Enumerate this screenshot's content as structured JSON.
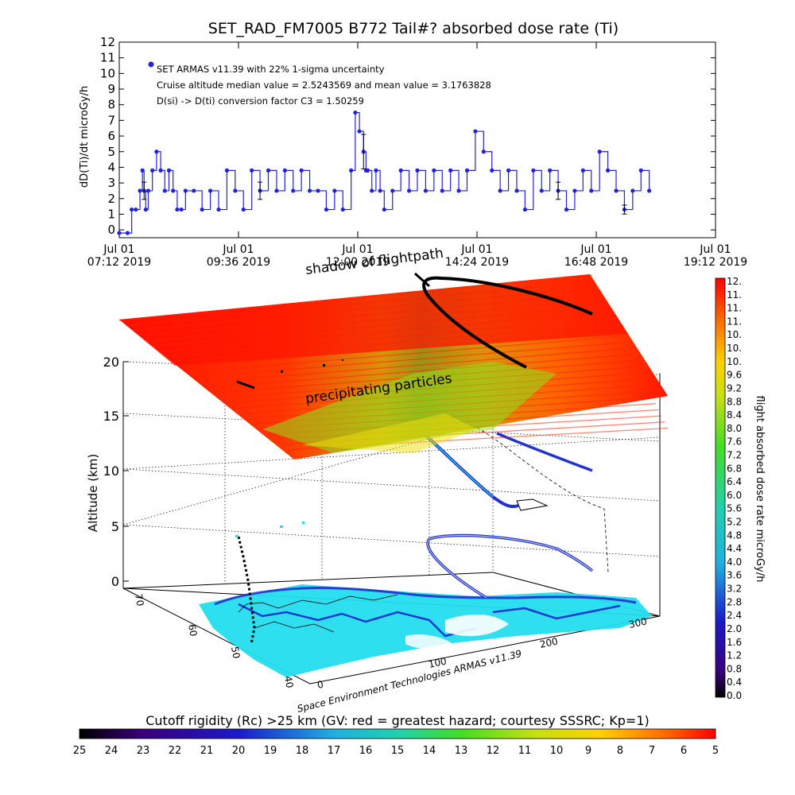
{
  "chart_data": [
    {
      "type": "line",
      "title": "SET_RAD_FM7005  B772 Tail#? absorbed dose rate (Ti)",
      "ylabel": "dD(Ti)/dt microGy/h",
      "ylim": [
        -0.5,
        12
      ],
      "y_ticks": [
        "0",
        "1",
        "2",
        "3",
        "4",
        "5",
        "6",
        "7",
        "8",
        "9",
        "10",
        "11",
        "12"
      ],
      "x_ticks": [
        {
          "top": "Jul 01",
          "bottom": "07:12 2019"
        },
        {
          "top": "Jul 01",
          "bottom": "09:36 2019"
        },
        {
          "top": "Jul 01",
          "bottom": "12:00 2019"
        },
        {
          "top": "Jul 01",
          "bottom": "14:24 2019"
        },
        {
          "top": "Jul 01",
          "bottom": "16:48 2019"
        },
        {
          "top": "Jul 01",
          "bottom": "19:12 2019"
        }
      ],
      "xlim_minutes_from_0712": [
        0,
        720
      ],
      "annotations": [
        "SET ARMAS v11.39 with 22% 1-sigma uncertainty",
        "Cruise altitude median value = 2.5243569 and mean value = 3.1763828",
        "D(si) -> D(ti) conversion factor C3 = 1.50259"
      ],
      "series": [
        {
          "color": "#2222dd",
          "x_minutes": [
            0,
            10,
            15,
            20,
            25,
            28,
            30,
            32,
            35,
            40,
            45,
            50,
            55,
            60,
            65,
            70,
            75,
            80,
            90,
            100,
            110,
            120,
            130,
            140,
            150,
            160,
            170,
            180,
            190,
            200,
            210,
            220,
            230,
            240,
            250,
            260,
            270,
            280,
            285,
            290,
            295,
            298,
            300,
            305,
            310,
            315,
            320,
            330,
            340,
            350,
            360,
            370,
            380,
            390,
            400,
            410,
            420,
            430,
            440,
            450,
            460,
            470,
            480,
            490,
            500,
            510,
            520,
            530,
            540,
            550,
            560,
            570,
            580,
            590,
            600,
            610,
            620,
            630,
            640
          ],
          "values": [
            -0.2,
            -0.2,
            1.3,
            1.3,
            2.5,
            3.8,
            2.5,
            1.3,
            2.5,
            3.8,
            5.0,
            3.8,
            2.5,
            3.8,
            2.5,
            1.3,
            1.3,
            2.5,
            2.5,
            1.3,
            2.5,
            1.3,
            3.8,
            2.5,
            1.3,
            3.8,
            2.5,
            3.8,
            2.5,
            3.8,
            2.5,
            3.8,
            2.5,
            2.5,
            1.3,
            2.5,
            1.3,
            3.8,
            7.5,
            6.3,
            5.0,
            3.8,
            3.8,
            2.5,
            3.8,
            2.5,
            1.3,
            2.5,
            3.8,
            2.5,
            3.8,
            2.5,
            3.8,
            2.5,
            3.8,
            2.5,
            3.8,
            6.3,
            5.0,
            3.8,
            2.5,
            3.8,
            2.5,
            1.3,
            3.8,
            2.5,
            3.8,
            2.5,
            1.3,
            2.5,
            3.8,
            2.5,
            5.0,
            3.8,
            2.5,
            1.3,
            2.5,
            3.8,
            2.5
          ]
        }
      ]
    },
    {
      "type": "3d-surface",
      "zlabel": "Altitude (km)",
      "z_ticks": [
        "0",
        "5",
        "10",
        "15",
        "20"
      ],
      "lat_ticks": [
        "70",
        "60",
        "50",
        "40"
      ],
      "lon_ticks": [
        "0",
        "100",
        "200",
        "300"
      ],
      "annotations": [
        "shadow of flightpath",
        "precipitating particles"
      ],
      "credit": "Space Environment Technologies ARMAS v11.39"
    },
    {
      "type": "colorbar",
      "label": "flight absorbed dose rate microGy/h",
      "ticks": [
        "0.0",
        "0.4",
        "0.8",
        "1.2",
        "1.6",
        "2.0",
        "2.4",
        "2.8",
        "3.2",
        "3.6",
        "4.0",
        "4.4",
        "4.8",
        "5.2",
        "5.6",
        "6.0",
        "6.4",
        "6.8",
        "7.2",
        "7.6",
        "8.0",
        "8.4",
        "8.8",
        "9.2",
        "9.6",
        "10.",
        "10.",
        "10.",
        "11.",
        "11.",
        "11.",
        "12."
      ]
    },
    {
      "type": "colorbar",
      "label": "Cutoff rigidity (Rc) >25 km (GV: red = greatest hazard; courtesy SSSRC; Kp=1)",
      "ticks": [
        "25",
        "24",
        "23",
        "22",
        "21",
        "20",
        "19",
        "18",
        "17",
        "16",
        "15",
        "14",
        "13",
        "12",
        "11",
        "10",
        "9",
        "8",
        "7",
        "6",
        "5"
      ]
    }
  ]
}
